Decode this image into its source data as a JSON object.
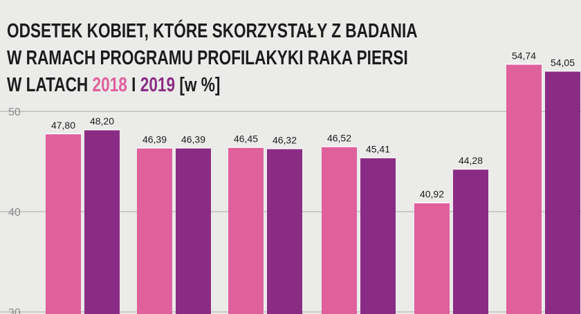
{
  "chart_data": {
    "type": "bar",
    "title": {
      "line1": "ODSETEK KOBIET, KTÓRE SKORZYSTAŁY Z BADANIA",
      "line2": "W RAMACH PROGRAMU PROFILAKYKI RAKA PIERSI",
      "line3_prefix": "W LATACH",
      "year1": "2018",
      "conj": "I",
      "year2": "2019",
      "unit": "[w %]"
    },
    "categories": [
      "",
      "",
      "",
      "",
      "",
      ""
    ],
    "series": [
      {
        "name": "2018",
        "color": "#e0609c",
        "values": [
          47.8,
          46.39,
          46.45,
          46.52,
          40.92,
          54.74
        ]
      },
      {
        "name": "2019",
        "color": "#8b2c84",
        "values": [
          48.2,
          46.39,
          46.32,
          45.41,
          44.28,
          54.05
        ]
      }
    ],
    "value_labels": [
      [
        "47,80",
        "46,39",
        "46,45",
        "46,52",
        "40,92",
        "54,74"
      ],
      [
        "48,20",
        "46,39",
        "46,32",
        "45,41",
        "44,28",
        "54,05"
      ]
    ],
    "yticks": [
      30,
      40,
      50
    ],
    "ylim": [
      30,
      56
    ],
    "grid": true
  }
}
